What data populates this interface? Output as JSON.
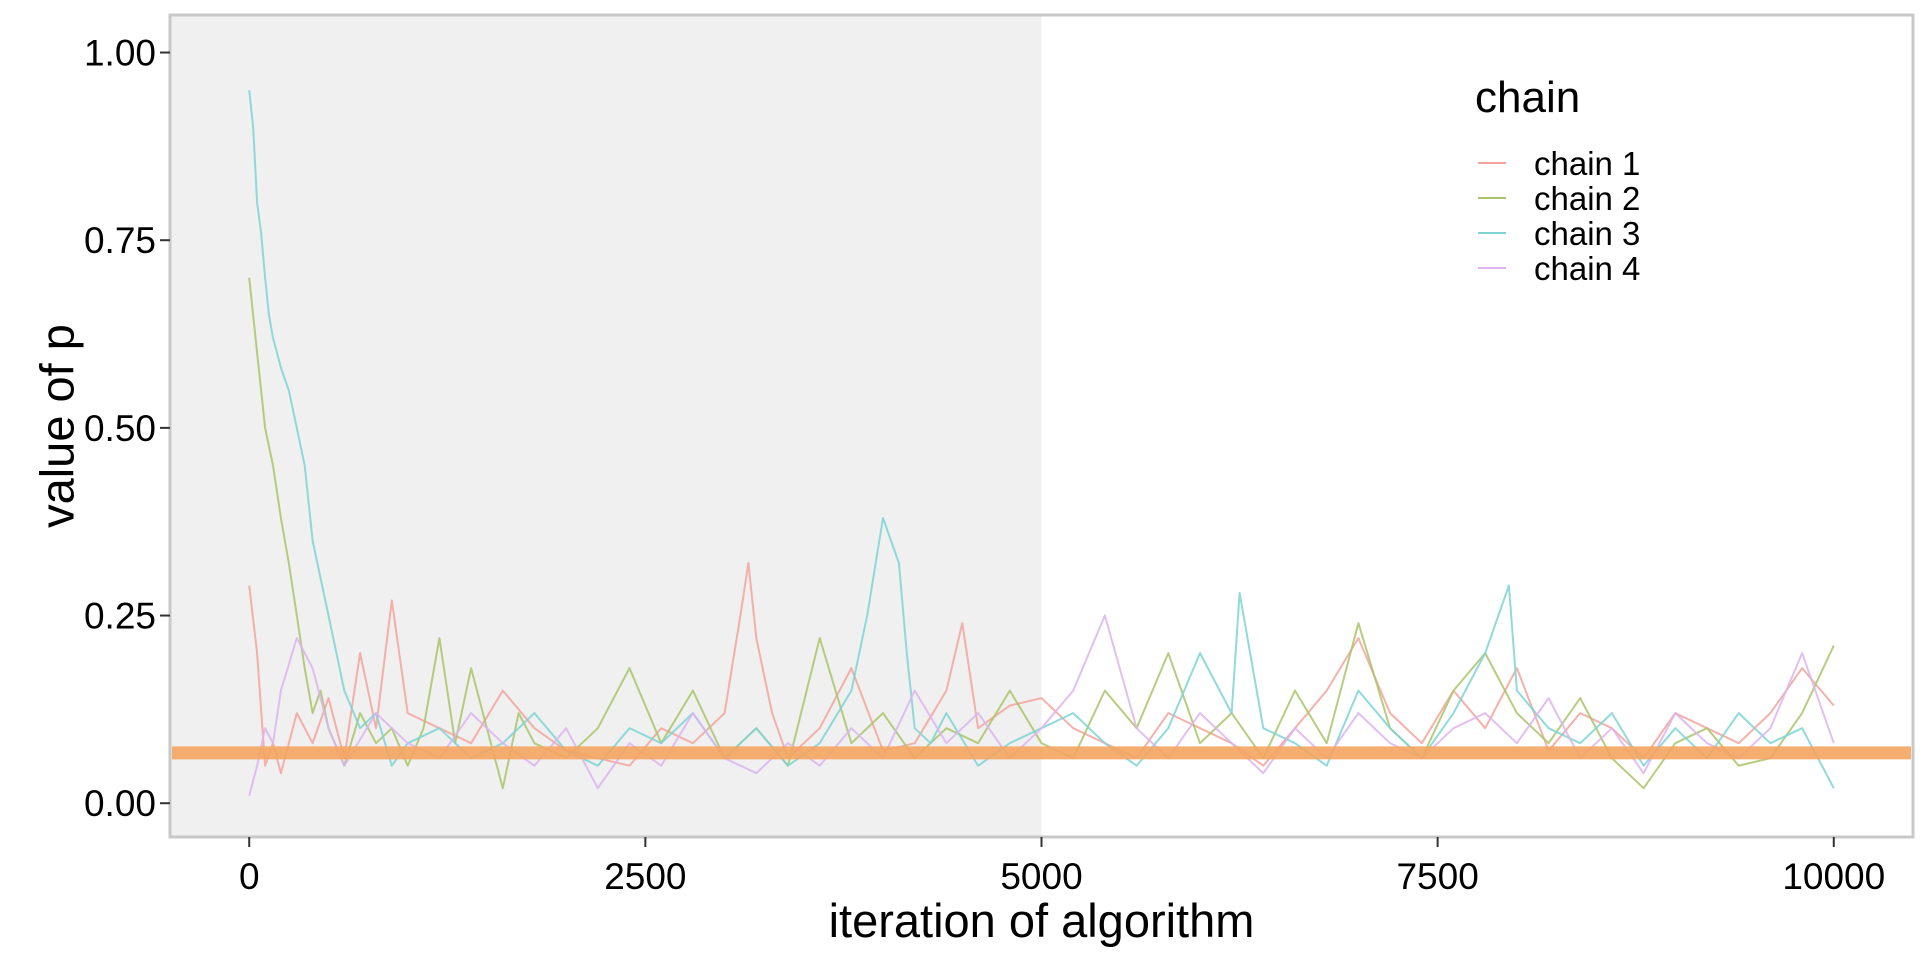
{
  "chart_data": {
    "type": "line",
    "title": "",
    "xlabel": "iteration of algorithm",
    "ylabel": "value of p",
    "xlim": [
      -500,
      10500
    ],
    "ylim": [
      -0.045,
      1.05
    ],
    "x_ticks": [
      0,
      2500,
      5000,
      7500,
      10000
    ],
    "x_tick_labels": [
      "0",
      "2500",
      "5000",
      "7500",
      "10000"
    ],
    "y_ticks": [
      0,
      0.25,
      0.5,
      0.75,
      1.0
    ],
    "y_tick_labels": [
      "0.00",
      "0.25",
      "0.50",
      "0.75",
      "1.00"
    ],
    "grid": false,
    "burn_in_shaded_region": {
      "x_start": -500,
      "x_end": 5000,
      "color": "#f0f0f0"
    },
    "reference_line": {
      "y": 0.067,
      "color": "#f4a460"
    },
    "legend": {
      "title": "chain",
      "position": "top-right"
    },
    "series": [
      {
        "name": "chain 1",
        "color": "#f3a39b",
        "x": [
          0,
          50,
          100,
          150,
          200,
          300,
          400,
          500,
          600,
          700,
          800,
          900,
          1000,
          1200,
          1400,
          1600,
          1800,
          2000,
          2200,
          2400,
          2600,
          2800,
          3000,
          3100,
          3150,
          3200,
          3300,
          3400,
          3600,
          3800,
          4000,
          4200,
          4400,
          4500,
          4600,
          4800,
          5000,
          5200,
          5400,
          5600,
          5800,
          6000,
          6200,
          6400,
          6600,
          6800,
          7000,
          7200,
          7400,
          7600,
          7800,
          8000,
          8200,
          8400,
          8600,
          8800,
          9000,
          9200,
          9400,
          9600,
          9800,
          10000
        ],
        "y": [
          0.29,
          0.2,
          0.05,
          0.08,
          0.04,
          0.12,
          0.08,
          0.14,
          0.06,
          0.2,
          0.1,
          0.27,
          0.12,
          0.1,
          0.08,
          0.15,
          0.1,
          0.07,
          0.06,
          0.05,
          0.1,
          0.08,
          0.12,
          0.25,
          0.32,
          0.22,
          0.12,
          0.06,
          0.1,
          0.18,
          0.07,
          0.08,
          0.15,
          0.24,
          0.1,
          0.13,
          0.14,
          0.1,
          0.08,
          0.06,
          0.12,
          0.1,
          0.08,
          0.05,
          0.1,
          0.15,
          0.22,
          0.12,
          0.08,
          0.15,
          0.1,
          0.18,
          0.07,
          0.12,
          0.1,
          0.06,
          0.12,
          0.1,
          0.08,
          0.12,
          0.18,
          0.13
        ]
      },
      {
        "name": "chain 2",
        "color": "#a9c46a",
        "x": [
          0,
          50,
          100,
          150,
          200,
          250,
          300,
          350,
          400,
          450,
          500,
          600,
          700,
          800,
          900,
          1000,
          1100,
          1200,
          1300,
          1400,
          1500,
          1600,
          1700,
          1800,
          2000,
          2200,
          2400,
          2600,
          2800,
          3000,
          3200,
          3400,
          3600,
          3800,
          4000,
          4200,
          4400,
          4600,
          4800,
          5000,
          5200,
          5400,
          5600,
          5800,
          6000,
          6200,
          6400,
          6600,
          6800,
          7000,
          7200,
          7400,
          7600,
          7800,
          8000,
          8200,
          8400,
          8600,
          8800,
          9000,
          9200,
          9400,
          9600,
          9800,
          10000
        ],
        "y": [
          0.7,
          0.6,
          0.5,
          0.45,
          0.38,
          0.32,
          0.25,
          0.18,
          0.12,
          0.15,
          0.1,
          0.05,
          0.12,
          0.08,
          0.1,
          0.05,
          0.1,
          0.22,
          0.08,
          0.18,
          0.1,
          0.02,
          0.12,
          0.08,
          0.06,
          0.1,
          0.18,
          0.08,
          0.15,
          0.06,
          0.1,
          0.05,
          0.22,
          0.08,
          0.12,
          0.06,
          0.1,
          0.08,
          0.15,
          0.08,
          0.06,
          0.15,
          0.1,
          0.2,
          0.08,
          0.12,
          0.06,
          0.15,
          0.08,
          0.24,
          0.1,
          0.06,
          0.15,
          0.2,
          0.12,
          0.08,
          0.14,
          0.06,
          0.02,
          0.08,
          0.1,
          0.05,
          0.06,
          0.12,
          0.21
        ]
      },
      {
        "name": "chain 3",
        "color": "#7ed3d4",
        "x": [
          0,
          25,
          50,
          75,
          100,
          125,
          150,
          200,
          250,
          300,
          350,
          400,
          450,
          500,
          550,
          600,
          700,
          800,
          900,
          1000,
          1200,
          1400,
          1600,
          1800,
          2000,
          2200,
          2400,
          2600,
          2800,
          3000,
          3200,
          3400,
          3600,
          3800,
          3900,
          4000,
          4100,
          4150,
          4200,
          4300,
          4400,
          4600,
          4800,
          5000,
          5200,
          5400,
          5600,
          5800,
          6000,
          6200,
          6250,
          6400,
          6600,
          6800,
          7000,
          7200,
          7400,
          7600,
          7800,
          7950,
          8000,
          8200,
          8400,
          8600,
          8800,
          9000,
          9200,
          9400,
          9600,
          9800,
          10000
        ],
        "y": [
          0.95,
          0.9,
          0.8,
          0.76,
          0.7,
          0.65,
          0.62,
          0.58,
          0.55,
          0.5,
          0.45,
          0.35,
          0.3,
          0.25,
          0.2,
          0.15,
          0.1,
          0.12,
          0.05,
          0.08,
          0.1,
          0.06,
          0.08,
          0.12,
          0.07,
          0.05,
          0.1,
          0.08,
          0.12,
          0.06,
          0.1,
          0.05,
          0.08,
          0.15,
          0.25,
          0.38,
          0.32,
          0.2,
          0.1,
          0.08,
          0.12,
          0.05,
          0.08,
          0.1,
          0.12,
          0.08,
          0.05,
          0.1,
          0.2,
          0.12,
          0.28,
          0.1,
          0.08,
          0.05,
          0.15,
          0.1,
          0.06,
          0.12,
          0.2,
          0.29,
          0.15,
          0.1,
          0.08,
          0.12,
          0.05,
          0.1,
          0.06,
          0.12,
          0.08,
          0.1,
          0.02
        ]
      },
      {
        "name": "chain 4",
        "color": "#dcb4f0",
        "x": [
          0,
          50,
          100,
          150,
          200,
          300,
          400,
          500,
          600,
          800,
          1000,
          1200,
          1400,
          1600,
          1800,
          2000,
          2200,
          2400,
          2600,
          2800,
          3000,
          3200,
          3400,
          3600,
          3800,
          4000,
          4200,
          4400,
          4600,
          4800,
          5000,
          5200,
          5400,
          5600,
          5800,
          6000,
          6200,
          6400,
          6600,
          6800,
          7000,
          7200,
          7400,
          7600,
          7800,
          8000,
          8200,
          8400,
          8600,
          8800,
          9000,
          9200,
          9400,
          9600,
          9800,
          10000
        ],
        "y": [
          0.01,
          0.05,
          0.1,
          0.08,
          0.15,
          0.22,
          0.18,
          0.1,
          0.05,
          0.12,
          0.08,
          0.06,
          0.12,
          0.08,
          0.05,
          0.1,
          0.02,
          0.08,
          0.05,
          0.12,
          0.06,
          0.04,
          0.08,
          0.05,
          0.1,
          0.06,
          0.15,
          0.08,
          0.12,
          0.06,
          0.1,
          0.15,
          0.25,
          0.1,
          0.06,
          0.12,
          0.08,
          0.04,
          0.1,
          0.06,
          0.12,
          0.08,
          0.06,
          0.1,
          0.12,
          0.08,
          0.14,
          0.06,
          0.1,
          0.04,
          0.12,
          0.08,
          0.06,
          0.1,
          0.2,
          0.08
        ]
      }
    ]
  }
}
